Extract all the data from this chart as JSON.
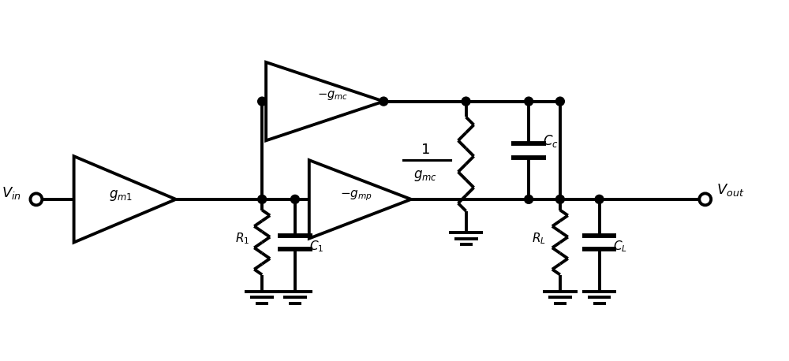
{
  "bg_color": "#ffffff",
  "line_color": "#000000",
  "lw": 2.8,
  "fig_width": 10.0,
  "fig_height": 4.58,
  "dpi": 100,
  "labels": {
    "vin": "$V_{in}$",
    "vout": "$V_{out}$",
    "gm1": "$g_{m1}$",
    "gmc_top": "$-g_{mc}$",
    "gmp": "$-g_{mp}$",
    "R1": "$R_1$",
    "C1": "$C_1$",
    "RL": "$R_L$",
    "CL": "$C_L$",
    "Cc": "$C_c$",
    "frac_num": "$1$",
    "frac_den": "$g_{mc}$"
  },
  "xlim": [
    0,
    10
  ],
  "ylim": [
    0,
    4.58
  ]
}
